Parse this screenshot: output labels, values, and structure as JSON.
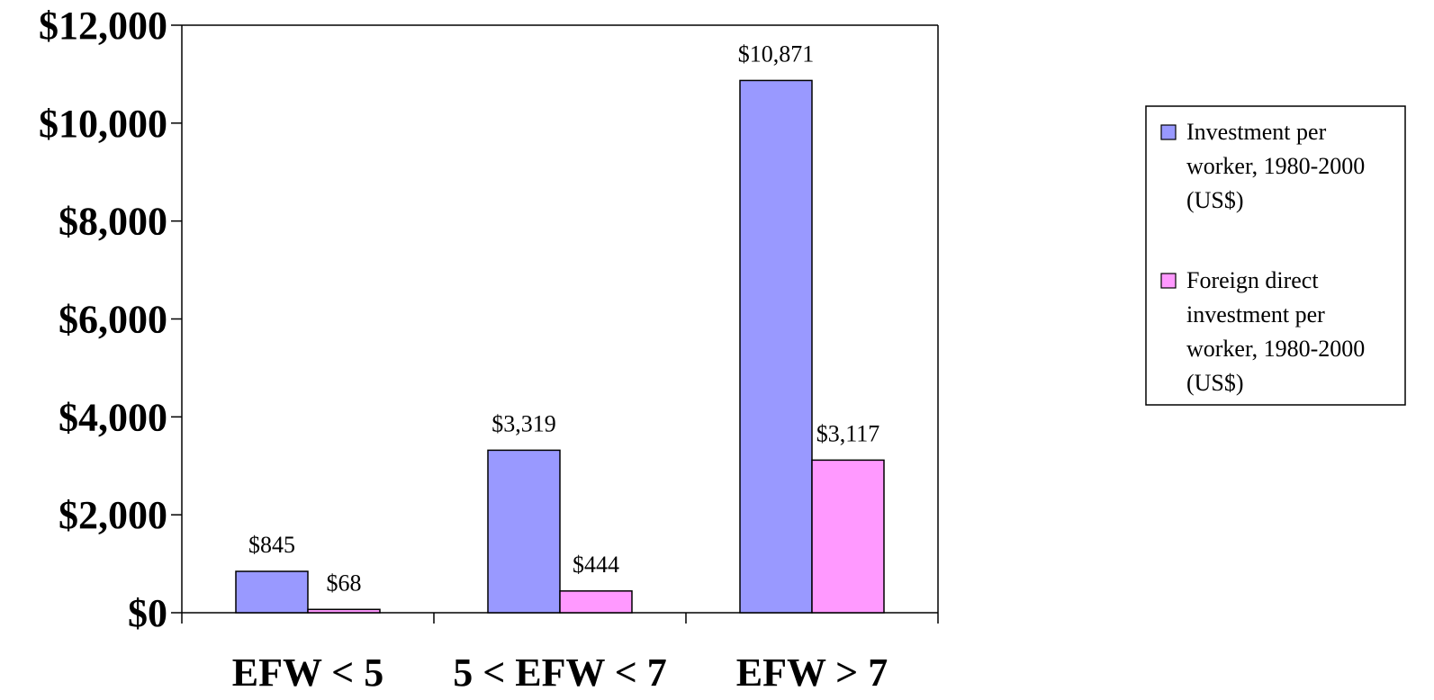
{
  "chart_data": {
    "type": "bar",
    "categories": [
      "EFW < 5",
      "5 < EFW < 7",
      "EFW > 7"
    ],
    "series": [
      {
        "name": "Investment per worker, 1980-2000 (US$)",
        "legend_lines": [
          "Investment per",
          "worker, 1980-2000",
          "(US$)"
        ],
        "values": [
          845,
          3319,
          10871
        ],
        "labels": [
          "$845",
          "$3,319",
          "$10,871"
        ],
        "color": "#9999FF"
      },
      {
        "name": "Foreign direct investment per worker, 1980-2000 (US$)",
        "legend_lines": [
          "Foreign direct",
          "investment per",
          "worker, 1980-2000",
          "(US$)"
        ],
        "values": [
          68,
          444,
          3117
        ],
        "labels": [
          "$68",
          "$444",
          "$3,117"
        ],
        "color": "#FF99FF"
      }
    ],
    "yticks": [
      0,
      2000,
      4000,
      6000,
      8000,
      10000,
      12000
    ],
    "ytick_labels": [
      "$0",
      "$2,000",
      "$4,000",
      "$6,000",
      "$8,000",
      "$10,000",
      "$12,000"
    ],
    "ylim": [
      0,
      12000
    ],
    "grid": false,
    "legend_position": "right"
  }
}
